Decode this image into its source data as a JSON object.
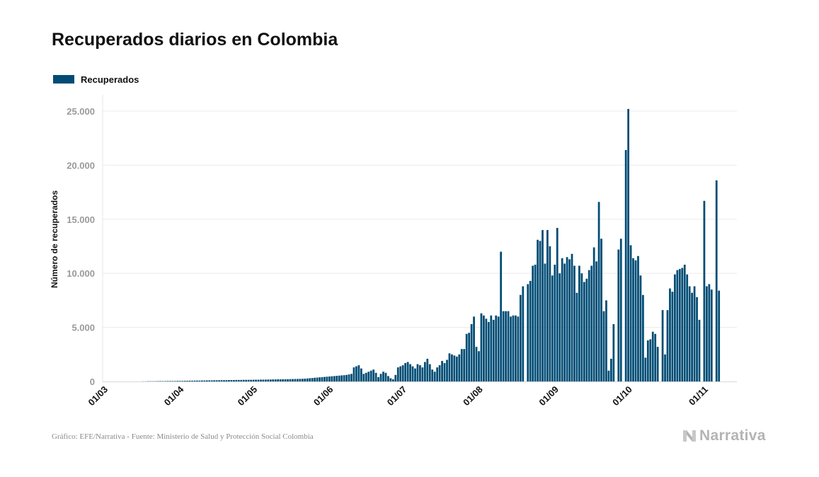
{
  "title": "Recuperados diarios en Colombia",
  "legend": {
    "label": "Recuperados",
    "color": "#004c74"
  },
  "footer": {
    "source": "Gráfico: EFE/Narrativa - Fuente: Ministerio de Salud y Protección Social Colombia"
  },
  "logo": {
    "text": "Narrativa"
  },
  "chart_data": {
    "type": "bar",
    "title": "Recuperados diarios en Colombia",
    "ylabel": "Número de recuperados",
    "xlabel": "",
    "ylim": [
      0,
      26000
    ],
    "x_date_range": [
      "2020-03-01",
      "2020-11-01"
    ],
    "x_tick_labels": [
      "01/03",
      "01/04",
      "01/05",
      "01/06",
      "01/07",
      "01/08",
      "01/09",
      "01/10",
      "01/11"
    ],
    "x_tick_dates": [
      "2020-03-01",
      "2020-04-01",
      "2020-05-01",
      "2020-06-01",
      "2020-07-01",
      "2020-08-01",
      "2020-09-01",
      "2020-10-01",
      "2020-11-01"
    ],
    "y_ticks": [
      0,
      5000,
      10000,
      15000,
      20000,
      25000
    ],
    "y_tick_labels": [
      "0",
      "5.000",
      "10.000",
      "15.000",
      "20.000",
      "25.000"
    ],
    "grid": true,
    "legend_position": "top-left",
    "series": [
      {
        "name": "Recuperados",
        "color": "#004c74",
        "start_date": "2020-03-01",
        "values": [
          0,
          0,
          0,
          0,
          0,
          0,
          0,
          0,
          0,
          0,
          0,
          0,
          0,
          0,
          0,
          10,
          10,
          20,
          20,
          20,
          20,
          30,
          30,
          30,
          30,
          40,
          40,
          40,
          40,
          50,
          50,
          50,
          60,
          60,
          70,
          70,
          80,
          80,
          80,
          90,
          90,
          100,
          100,
          100,
          110,
          110,
          110,
          120,
          120,
          120,
          130,
          130,
          130,
          140,
          140,
          140,
          150,
          150,
          150,
          150,
          160,
          160,
          160,
          170,
          170,
          170,
          180,
          180,
          190,
          190,
          200,
          200,
          200,
          210,
          210,
          220,
          220,
          230,
          230,
          240,
          250,
          260,
          280,
          300,
          320,
          340,
          360,
          380,
          400,
          420,
          440,
          460,
          480,
          500,
          520,
          540,
          560,
          580,
          600,
          650,
          700,
          1300,
          1400,
          1500,
          1200,
          700,
          800,
          900,
          1000,
          1100,
          800,
          400,
          700,
          900,
          800,
          500,
          300,
          200,
          600,
          1300,
          1400,
          1500,
          1700,
          1800,
          1600,
          1400,
          1200,
          1600,
          1500,
          1300,
          1800,
          2100,
          1600,
          1100,
          900,
          1300,
          1500,
          1900,
          1700,
          2000,
          2600,
          2500,
          2400,
          2300,
          2500,
          3000,
          3000,
          4400,
          4500,
          5300,
          6000,
          3200,
          2800,
          6300,
          6100,
          5800,
          5500,
          6100,
          5700,
          6100,
          6000,
          12000,
          6500,
          6500,
          6500,
          6000,
          6100,
          6100,
          6000,
          8000,
          8800,
          0,
          9000,
          9300,
          10700,
          10800,
          13100,
          13000,
          14000,
          10900,
          14000,
          12500,
          9800,
          10800,
          14200,
          10000,
          11400,
          10900,
          11500,
          11300,
          11800,
          10700,
          8200,
          10700,
          10000,
          9200,
          9500,
          10300,
          10700,
          12400,
          11100,
          16600,
          13200,
          6500,
          7500,
          1000,
          2100,
          5300,
          0,
          12200,
          13200,
          0,
          21400,
          25200,
          12600,
          11400,
          11200,
          11600,
          9800,
          8000,
          2200,
          3800,
          3900,
          4600,
          4400,
          3200,
          0,
          6600,
          2500,
          6600,
          8600,
          8300,
          9900,
          10300,
          10400,
          10500,
          10800,
          9900,
          8800,
          8200,
          8800,
          7800,
          5700,
          0,
          16700,
          8800,
          9000,
          8500,
          0,
          18600,
          8400
        ]
      }
    ]
  }
}
